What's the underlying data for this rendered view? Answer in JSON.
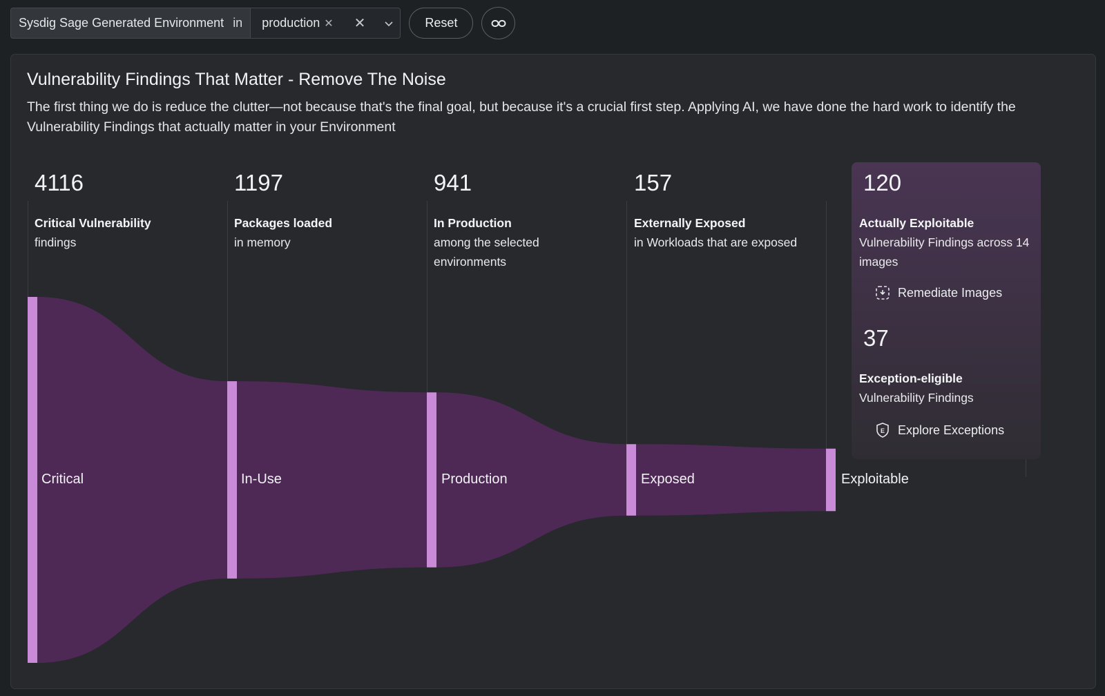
{
  "filter": {
    "field": "Sysdig Sage Generated Environment",
    "operator": "in",
    "value": "production",
    "reset_label": "Reset"
  },
  "panel": {
    "title": "Vulnerability Findings That Matter - Remove The Noise",
    "description": "The first thing we do is reduce the clutter—not because that's the final goal, but because it's a crucial first step. Applying AI, we have done the hard work to identify the Vulnerability Findings that actually matter in your Environment"
  },
  "funnel": [
    {
      "count": "4116",
      "title": "Critical Vulnerability",
      "subtitle": "findings",
      "stage": "Critical"
    },
    {
      "count": "1197",
      "title": "Packages loaded",
      "subtitle": "in memory",
      "stage": "In-Use"
    },
    {
      "count": "941",
      "title": "In Production",
      "subtitle": "among the selected environments",
      "stage": "Production"
    },
    {
      "count": "157",
      "title": "Externally Exposed",
      "subtitle": "in Workloads that are exposed",
      "stage": "Exposed"
    }
  ],
  "exploitable": {
    "count": "120",
    "title": "Actually Exploitable",
    "subtitle": "Vulnerability Findings across 14 images",
    "action": "Remediate Images",
    "stage": "Exploitable"
  },
  "exceptions": {
    "count": "37",
    "title": "Exception-eligible",
    "subtitle": "Vulnerability Findings",
    "action": "Explore Exceptions"
  },
  "chart_data": {
    "type": "sankey",
    "stages": [
      "Critical",
      "In-Use",
      "Production",
      "Exposed",
      "Exploitable"
    ],
    "values": [
      4116,
      1197,
      941,
      157,
      120
    ]
  },
  "colors": {
    "flow": "#4f2956",
    "node": "#c98ad8",
    "highlight": "#4a3553"
  },
  "icons": {
    "value_clear": "close-icon",
    "filter_clear": "close-icon",
    "dropdown": "chevron-down-icon",
    "link": "link-icon",
    "remediate": "remediate-images-icon",
    "exceptions": "exception-shield-icon"
  }
}
